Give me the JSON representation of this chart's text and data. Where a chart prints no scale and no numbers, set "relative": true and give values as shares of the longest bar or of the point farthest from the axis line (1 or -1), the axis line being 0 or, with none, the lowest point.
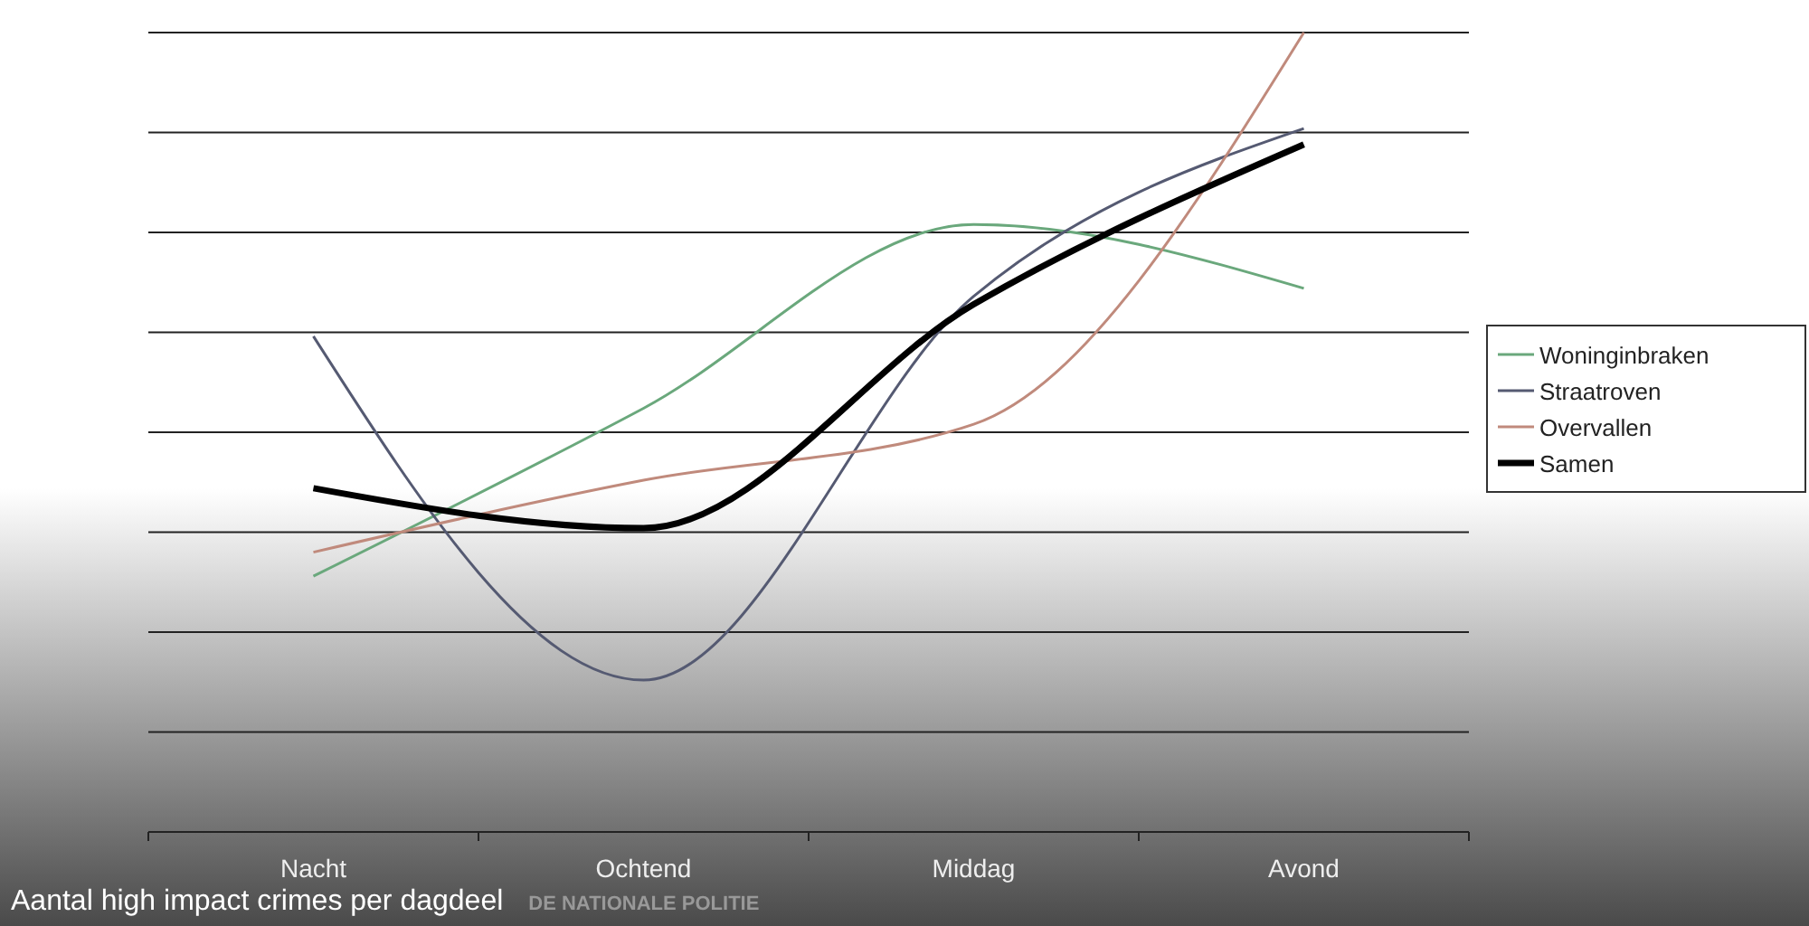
{
  "chart_data": {
    "type": "line",
    "title": "Aantal high impact crimes per dagdeel",
    "annotations": [
      "DE NATIONALE POLITIE"
    ],
    "relative": true,
    "grid": "y",
    "legend": "right",
    "marker": "none",
    "line_style": "solid",
    "categories": [
      "Nacht",
      "Ochtend",
      "Middag",
      "Avond"
    ],
    "series": [
      {
        "name": "Woninginbraken",
        "color": "#6aa87c",
        "values": [
          0.32,
          0.53,
          0.76,
          0.68
        ]
      },
      {
        "name": "Straatroven",
        "color": "#555a72",
        "values": [
          0.62,
          0.19,
          0.67,
          0.88
        ]
      },
      {
        "name": "Overvallen",
        "color": "#c08a7c",
        "values": [
          0.35,
          0.44,
          0.51,
          1.0
        ]
      },
      {
        "name": "Samen",
        "color": "#000000",
        "values": [
          0.43,
          0.38,
          0.66,
          0.86
        ]
      }
    ]
  }
}
